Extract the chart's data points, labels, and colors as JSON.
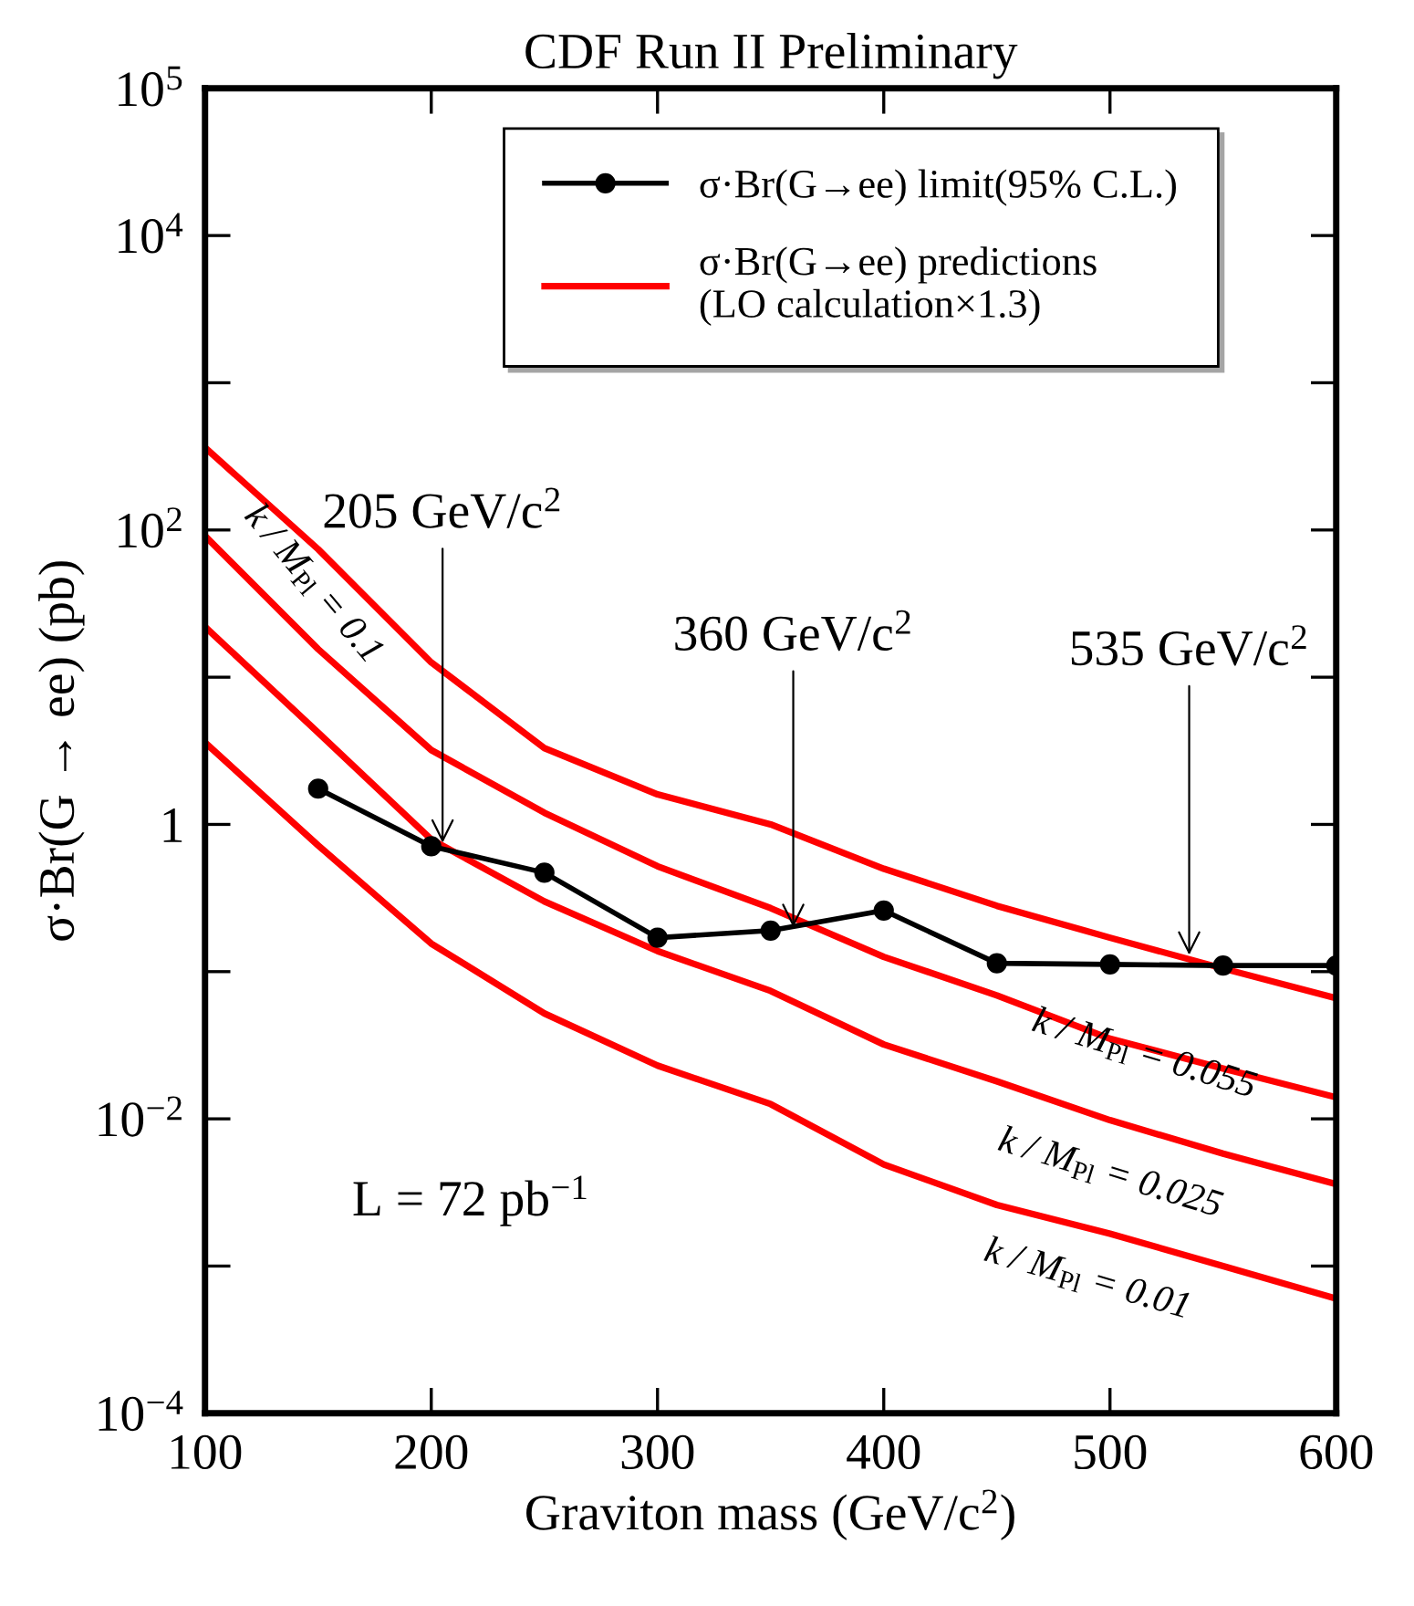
{
  "chart_data": {
    "type": "line",
    "title": "CDF Run II Preliminary",
    "xlabel": "Graviton mass (GeV/c$^{2}$)",
    "ylabel": "σ·Br(G → ee) (pb)",
    "x": [
      100,
      150,
      200,
      250,
      300,
      350,
      400,
      450,
      500,
      550,
      600
    ],
    "series": [
      {
        "name": "σ·Br(G→ee) limit(95% C.L.)",
        "color": "#000000",
        "marker": "circle",
        "x": [
          150,
          200,
          250,
          300,
          350,
          400,
          450,
          500,
          550,
          600
        ],
        "values": [
          1.75,
          0.71,
          0.47,
          0.17,
          0.19,
          0.26,
          0.114,
          0.112,
          0.11,
          0.11
        ]
      },
      {
        "name": "σ·Br(G→ee) predictions\n(LO calculation×1.3)",
        "color": "#ff0000",
        "marker": "none",
        "values": [
          363,
          74,
          12.6,
          3.3,
          1.6,
          1.0,
          0.5,
          0.28,
          0.17,
          0.105,
          0.066
        ]
      },
      {
        "color": "#ff0000",
        "marker": "none",
        "values": [
          91,
          15.5,
          3.2,
          1.2,
          0.52,
          0.27,
          0.126,
          0.069,
          0.035,
          0.022,
          0.014
        ]
      },
      {
        "color": "#ff0000",
        "marker": "none",
        "values": [
          22,
          4.2,
          0.79,
          0.3,
          0.138,
          0.074,
          0.032,
          0.018,
          0.0098,
          0.0058,
          0.0036
        ]
      },
      {
        "color": "#ff0000",
        "marker": "none",
        "values": [
          3.6,
          0.72,
          0.155,
          0.052,
          0.023,
          0.0126,
          0.0049,
          0.0026,
          0.00166,
          0.001,
          0.0006
        ]
      }
    ],
    "log": "y",
    "xlim": [
      100,
      600
    ],
    "ylim": [
      0.0001,
      100000
    ],
    "xticks": [
      100,
      200,
      300,
      400,
      500,
      600
    ],
    "yticks": [
      {
        "value": 0.0001,
        "label": "10$^{−4}$"
      },
      {
        "value": 0.001,
        "label": null
      },
      {
        "value": 0.01,
        "label": "10$^{−2}$"
      },
      {
        "value": 0.1,
        "label": null
      },
      1,
      {
        "value": 10,
        "label": null
      },
      {
        "value": 100,
        "label": "10$^{2}$"
      },
      {
        "value": 1000,
        "label": null
      },
      {
        "value": 10000,
        "label": "10$^{4}$"
      },
      {
        "value": 100000,
        "label": "10$^{5}$"
      }
    ],
    "grid": false,
    "legend": "top",
    "line_style": "solid",
    "annotations": [
      {
        "text": "205 GeV/c$^{2}$",
        "x": 205,
        "y": 0.75
      },
      {
        "text": "360 GeV/c$^{2}$",
        "x": 360,
        "y": 0.2
      },
      {
        "text": "535 GeV/c$^{2}$",
        "x": 535,
        "y": 0.13
      },
      "L = 72 pb$^{−1}$",
      "k / M$_{Pl}$ = 0.1",
      "k / M$_{Pl}$ = 0.055",
      "k / M$_{Pl}$ = 0.025",
      "k / M$_{Pl}$ = 0.01"
    ]
  }
}
